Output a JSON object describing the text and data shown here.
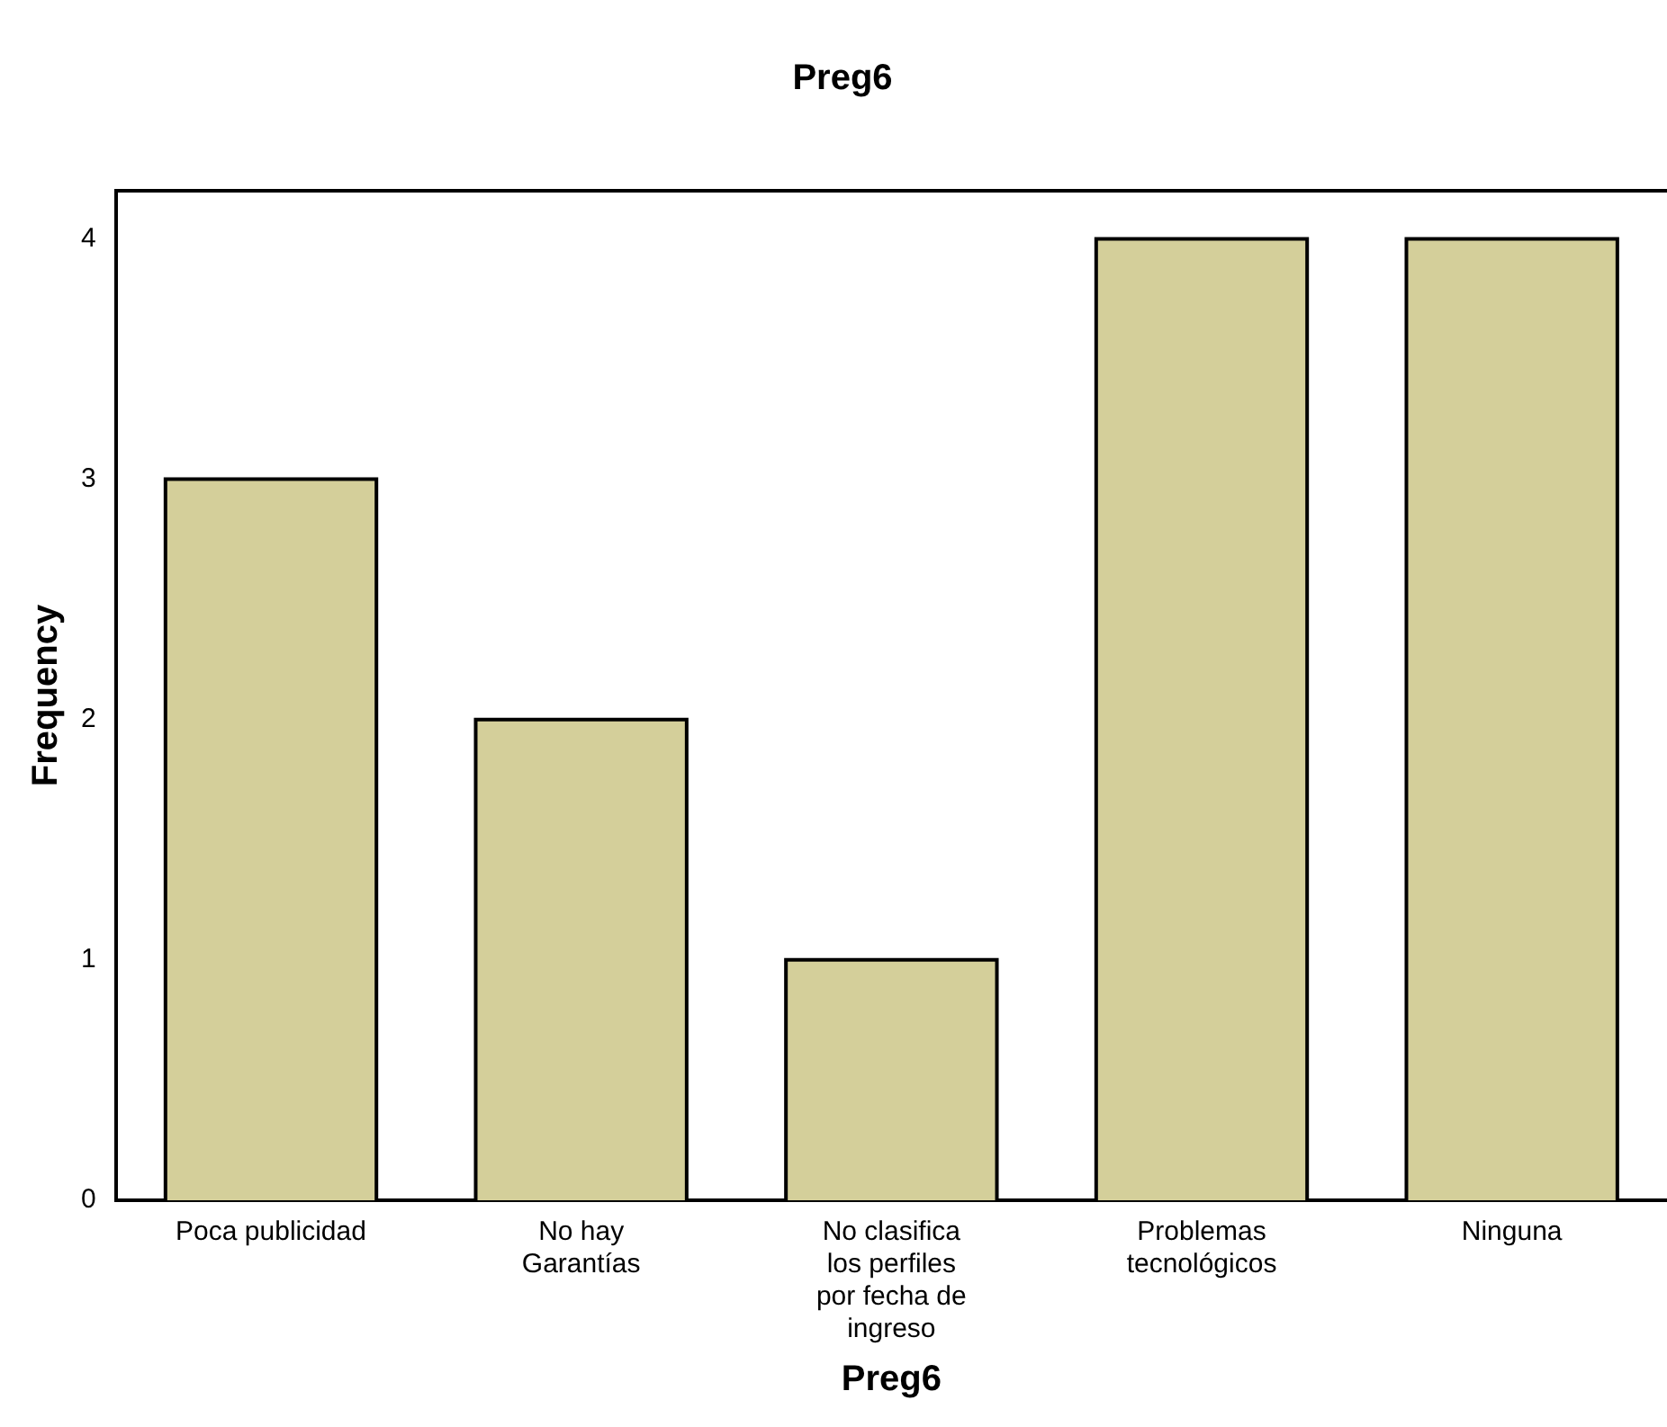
{
  "chart_data": {
    "type": "bar",
    "title": "Preg6",
    "xlabel": "Preg6",
    "ylabel": "Frequency",
    "categories": [
      "Poca publicidad",
      "No hay Garantías",
      "No clasifica los perfiles por fecha de ingreso",
      "Problemas tecnológicos",
      "Ninguna"
    ],
    "values": [
      3,
      2,
      1,
      4,
      4
    ],
    "color": "#d4cf9a",
    "ylim": [
      0,
      4.2
    ],
    "yticks": [
      0,
      1,
      2,
      3,
      4
    ],
    "grid": false,
    "legend": false
  }
}
